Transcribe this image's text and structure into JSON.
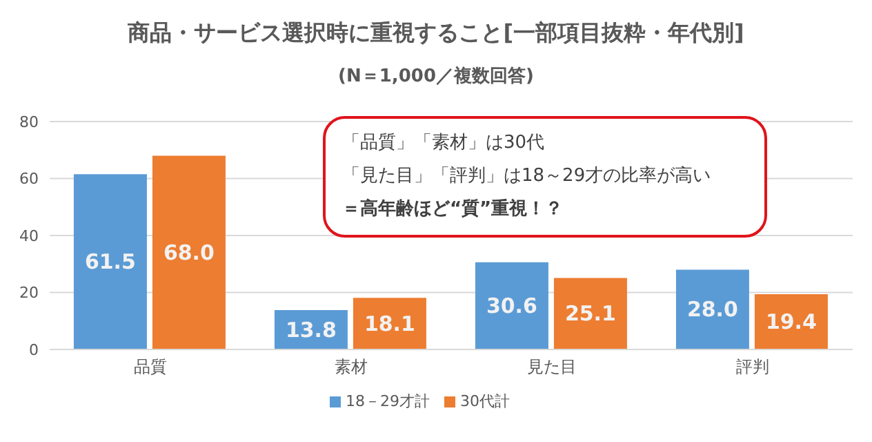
{
  "chart_data": {
    "type": "bar",
    "title": "商品・サービス選択時に重視すること[一部項目抜粋・年代別]",
    "subtitle": "(N＝1,000／複数回答)",
    "categories": [
      "品質",
      "素材",
      "見た目",
      "評判"
    ],
    "series": [
      {
        "name": "18－29才計",
        "color": "#5b9bd5",
        "values": [
          61.5,
          13.8,
          30.6,
          28.0
        ],
        "value_labels": [
          "61.5",
          "13.8",
          "30.6",
          "28.0"
        ]
      },
      {
        "name": "30代計",
        "color": "#ed7d31",
        "values": [
          68.0,
          18.1,
          25.1,
          19.4
        ],
        "value_labels": [
          "68.0",
          "18.1",
          "25.1",
          "19.4"
        ]
      }
    ],
    "ylim": [
      0,
      80
    ],
    "yticks": [
      0,
      20,
      40,
      60,
      80
    ],
    "grid": "y",
    "legend": "bottom",
    "annotations": [
      "「品質」「素材」は30代",
      "「見た目」「評判」は18～29才の比率が高い",
      "＝高年齢ほど“質”重視！？"
    ]
  }
}
